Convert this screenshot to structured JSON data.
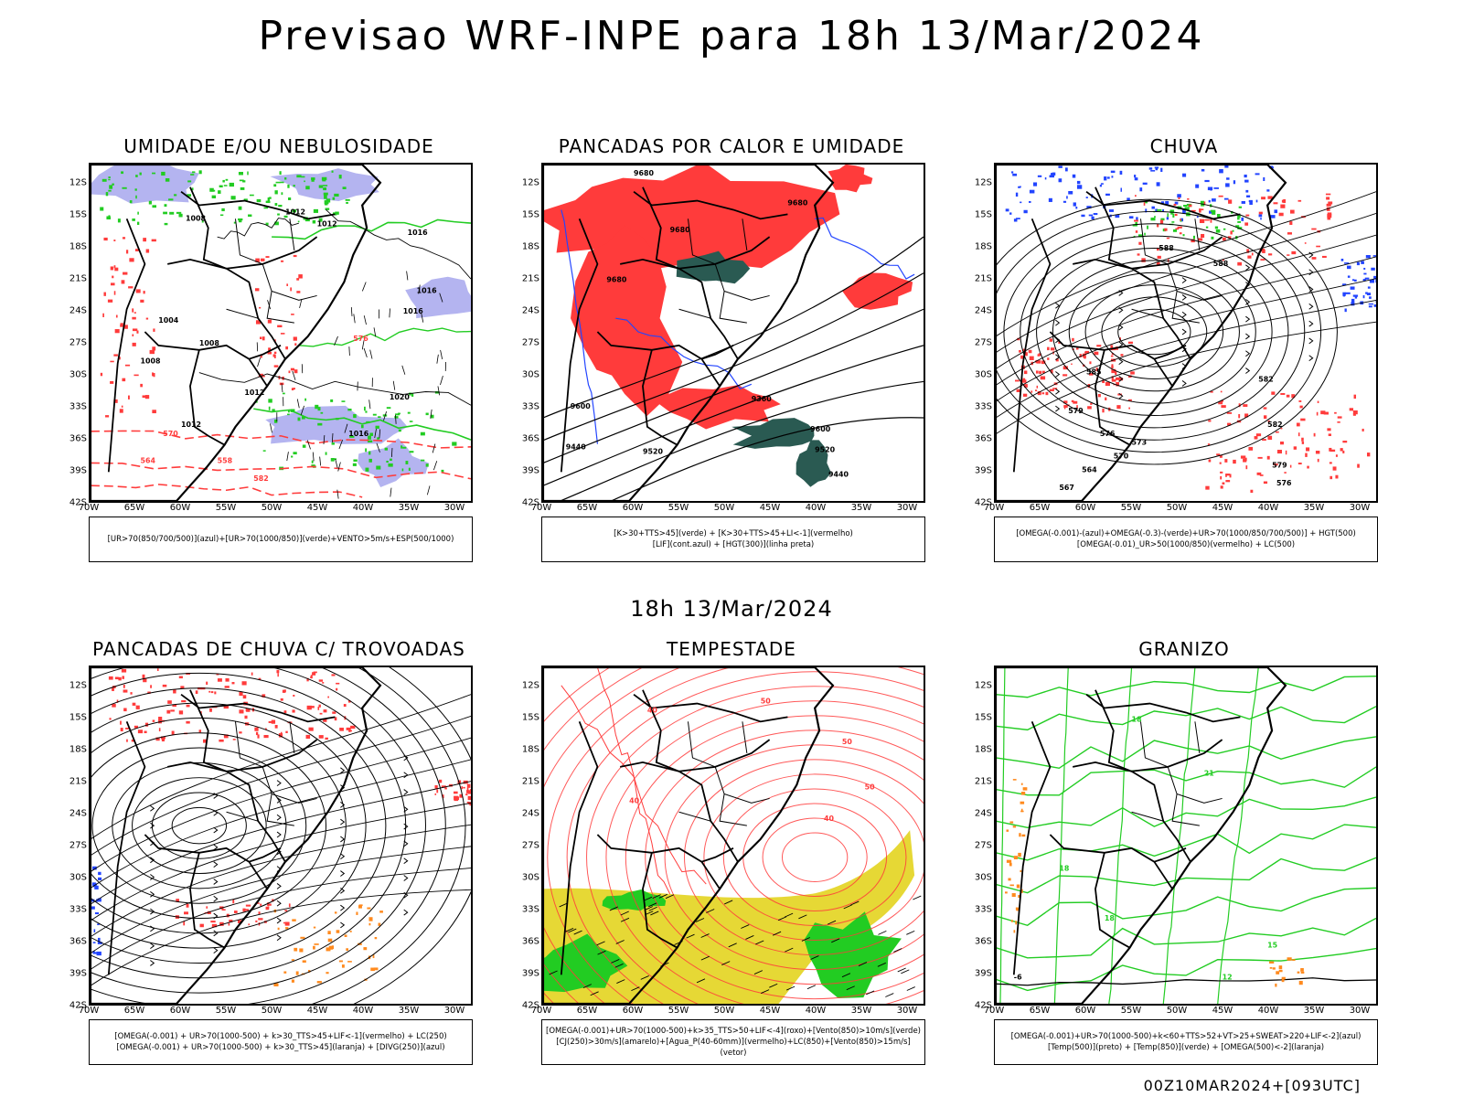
{
  "main_title": "Previsao WRF-INPE  para 18h 13/Mar/2024",
  "mid_title": "18h 13/Mar/2024",
  "footer": "00Z10MAR2024+[093UTC]",
  "lat_labels": [
    "12S",
    "15S",
    "18S",
    "21S",
    "24S",
    "27S",
    "30S",
    "33S",
    "36S",
    "39S",
    "42S"
  ],
  "lon_labels": [
    "70W",
    "65W",
    "60W",
    "55W",
    "50W",
    "45W",
    "40W",
    "35W",
    "30W"
  ],
  "colors": {
    "red": "#ff3b3b",
    "green": "#22cc22",
    "blue": "#2244ff",
    "lavender": "#b4b4f0",
    "darkteal": "#2a5a52",
    "yellow": "#e6d835",
    "orange": "#ff8a1e",
    "purple": "#a020f0",
    "black": "#000000"
  },
  "panels": [
    {
      "title": "UMIDADE E/OU NEBULOSIDADE",
      "legend": [
        "[UR>70(850/700/500)](azul)+[UR>70(1000/850)](verde)+VENTO>5m/s+ESP(500/1000)"
      ],
      "contour_labels": [
        "1008",
        "1012",
        "1012",
        "1016",
        "1016",
        "1016",
        "1020",
        "1004",
        "1008",
        "1008",
        "1012",
        "1012",
        "1016",
        "576",
        "570",
        "564",
        "558",
        "582"
      ]
    },
    {
      "title": "PANCADAS POR CALOR E UMIDADE",
      "legend": [
        "[K>30+TTS>45](verde) + [K>30+TTS>45+LI<-1](vermelho)",
        "[LIF](cont.azul) + [HGT(300)](linha preta)"
      ],
      "contour_labels": [
        "9680",
        "9680",
        "9680",
        "9600",
        "9520",
        "9440",
        "9360",
        "9600",
        "9520",
        "9440",
        "9680"
      ]
    },
    {
      "title": "CHUVA",
      "legend": [
        "[OMEGA(-0.001)-(azul)+OMEGA(-0.3)-(verde)+UR>70(1000/850/700/500)] + HGT(500)",
        "[OMEGA(-0.01)_UR>50(1000/850)(vermelho) + LC(500)"
      ],
      "contour_labels": [
        "588",
        "588",
        "585",
        "582",
        "579",
        "576",
        "573",
        "570",
        "567",
        "564",
        "582",
        "579",
        "576"
      ]
    },
    {
      "title": "PANCADAS DE CHUVA C/ TROVOADAS",
      "legend": [
        "[OMEGA(-0.001) + UR>70(1000-500) + k>30_TTS>45+LIF<-1](vermelho) + LC(250)",
        "[OMEGA(-0.001) + UR>70(1000-500) + k>30_TTS>45](laranja) + [DIVG(250)](azul)"
      ],
      "contour_labels": []
    },
    {
      "title": "TEMPESTADE",
      "legend": [
        "[OMEGA(-0.001)+UR>70(1000-500)+k>35_TTS>50+LIF<-4](roxo)+[Vento(850)>10m/s](verde)",
        "[CJ(250)>30m/s](amarelo)+[Agua_P(40-60mm)](vermelho)+LC(850)+[Vento(850)>15m/s](vetor)"
      ],
      "contour_labels": [
        "40",
        "50",
        "50",
        "40",
        "40",
        "50"
      ]
    },
    {
      "title": "GRANIZO",
      "legend": [
        "[OMEGA(-0.001)+UR>70(1000-500)+k<60+TTS>52+VT>25+SWEAT>220+LIF<-2](azul)",
        "[Temp(500)](preto) + [Temp(850)](verde) + [OMEGA(500)<-2](laranja)"
      ],
      "contour_labels": [
        "18",
        "21",
        "18",
        "15",
        "18",
        "12",
        "-6"
      ]
    }
  ]
}
